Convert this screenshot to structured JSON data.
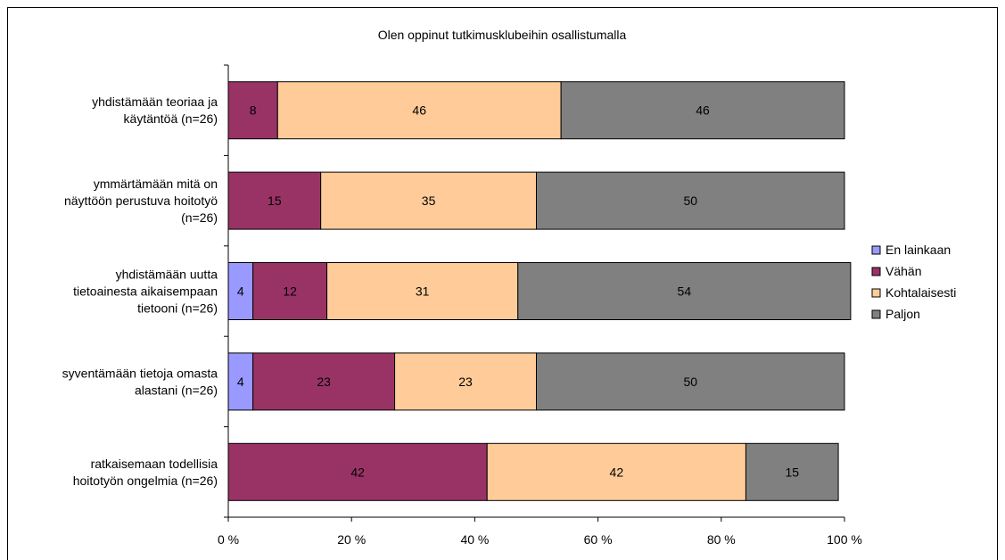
{
  "chart_data": {
    "type": "bar",
    "orientation": "horizontal",
    "stacked": "percent",
    "title": "Olen oppinut tutkimusklubeihin osallistumalla",
    "xlabel": "",
    "ylabel": "",
    "xlim": [
      0,
      100
    ],
    "x_ticks": [
      "0 %",
      "20 %",
      "40 %",
      "60 %",
      "80 %",
      "100 %"
    ],
    "categories": [
      [
        "yhdistämään  teoriaa ja",
        "käytäntöä (n=26)"
      ],
      [
        "ymmärtämään mitä on",
        "näyttöön perustuva hoitotyö",
        "(n=26)"
      ],
      [
        "yhdistämään uutta",
        "tietoainesta aikaisempaan",
        "tietooni (n=26)"
      ],
      [
        "syventämään tietoja omasta",
        "alastani (n=26)"
      ],
      [
        "ratkaisemaan todellisia",
        "hoitotyön ongelmia (n=26)"
      ]
    ],
    "series": [
      {
        "name": "En lainkaan",
        "color": "#9999FF",
        "values": [
          0,
          0,
          4,
          4,
          0
        ]
      },
      {
        "name": "Vähän",
        "color": "#993366",
        "values": [
          8,
          15,
          12,
          23,
          42
        ]
      },
      {
        "name": "Kohtalaisesti",
        "color": "#FFCC99",
        "values": [
          46,
          35,
          31,
          23,
          42
        ]
      },
      {
        "name": "Paljon",
        "color": "#808080",
        "values": [
          46,
          50,
          54,
          50,
          15
        ]
      }
    ],
    "legend_position": "right",
    "grid": false
  }
}
